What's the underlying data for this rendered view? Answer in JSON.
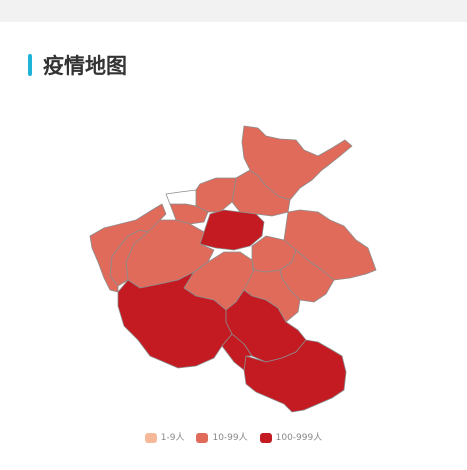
{
  "section": {
    "title": "疫情地图",
    "accent_color": "#1fb3d8"
  },
  "legend": {
    "items": [
      {
        "label": "1-9人",
        "color": "#f5b899"
      },
      {
        "label": "10-99人",
        "color": "#e06b5b"
      },
      {
        "label": "100-999人",
        "color": "#c41a22"
      }
    ]
  },
  "map": {
    "regions": [
      {
        "bucket": 1
      },
      {
        "bucket": 1
      },
      {
        "bucket": 1
      },
      {
        "bucket": 1
      },
      {
        "bucket": 1
      },
      {
        "bucket": 2
      },
      {
        "bucket": 0
      },
      {
        "bucket": 1
      },
      {
        "bucket": 1
      },
      {
        "bucket": 1
      },
      {
        "bucket": 1
      },
      {
        "bucket": 1
      },
      {
        "bucket": 1
      },
      {
        "bucket": 2
      },
      {
        "bucket": 2
      },
      {
        "bucket": 2
      },
      {
        "bucket": 2
      },
      {
        "bucket": 1
      }
    ],
    "empty_color": "#ffffff",
    "border_color": "#8c8c8c"
  }
}
